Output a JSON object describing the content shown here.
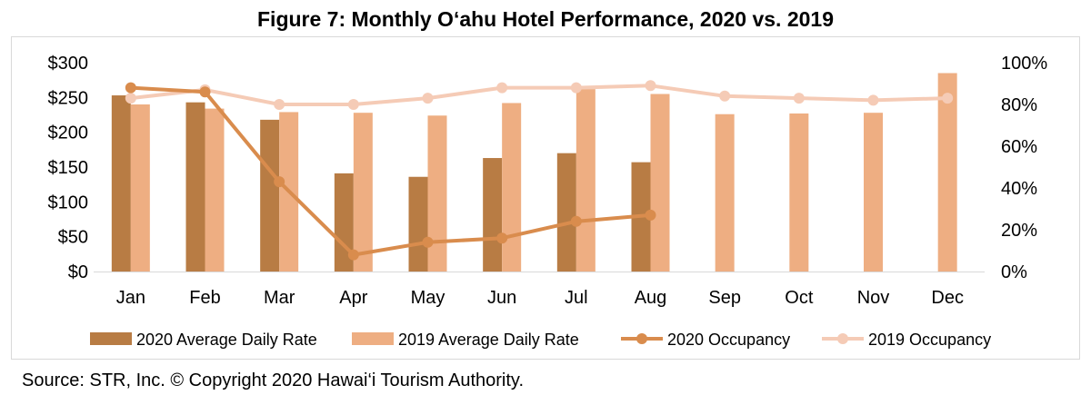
{
  "title": "Figure 7: Monthly O‘ahu Hotel Performance, 2020 vs. 2019",
  "source": "Source: STR, Inc. © Copyright 2020 Hawai‘i Tourism Authority.",
  "colors": {
    "adr_2020": "#b87c44",
    "adr_2019": "#eeae82",
    "occ_2020": "#d98c4d",
    "occ_2019": "#f5cbb6",
    "gridline": "#d9d9d9"
  },
  "chart_data": {
    "type": "bar",
    "categories": [
      "Jan",
      "Feb",
      "Mar",
      "Apr",
      "May",
      "Jun",
      "Jul",
      "Aug",
      "Sep",
      "Oct",
      "Nov",
      "Dec"
    ],
    "y_left": {
      "ticks": [
        "$0",
        "$50",
        "$100",
        "$150",
        "$200",
        "$250",
        "$300"
      ],
      "lim": [
        0,
        300
      ]
    },
    "y_right": {
      "ticks": [
        "0%",
        "20%",
        "40%",
        "60%",
        "80%",
        "100%"
      ],
      "lim": [
        0,
        100
      ]
    },
    "series": [
      {
        "name": "2020 Average Daily Rate",
        "kind": "bar",
        "axis": "left",
        "values": [
          253,
          243,
          218,
          141,
          136,
          163,
          170,
          157,
          null,
          null,
          null,
          null
        ]
      },
      {
        "name": "2019 Average Daily Rate",
        "kind": "bar",
        "axis": "left",
        "values": [
          240,
          234,
          229,
          228,
          224,
          242,
          262,
          255,
          226,
          227,
          228,
          285
        ]
      },
      {
        "name": "2020 Occupancy",
        "kind": "line",
        "axis": "right",
        "values": [
          88,
          86,
          43,
          8,
          14,
          16,
          24,
          27,
          null,
          null,
          null,
          null
        ]
      },
      {
        "name": "2019 Occupancy",
        "kind": "line",
        "axis": "right",
        "values": [
          83,
          87,
          80,
          80,
          83,
          88,
          88,
          89,
          84,
          83,
          82,
          83
        ]
      }
    ],
    "legend_position": "bottom"
  }
}
